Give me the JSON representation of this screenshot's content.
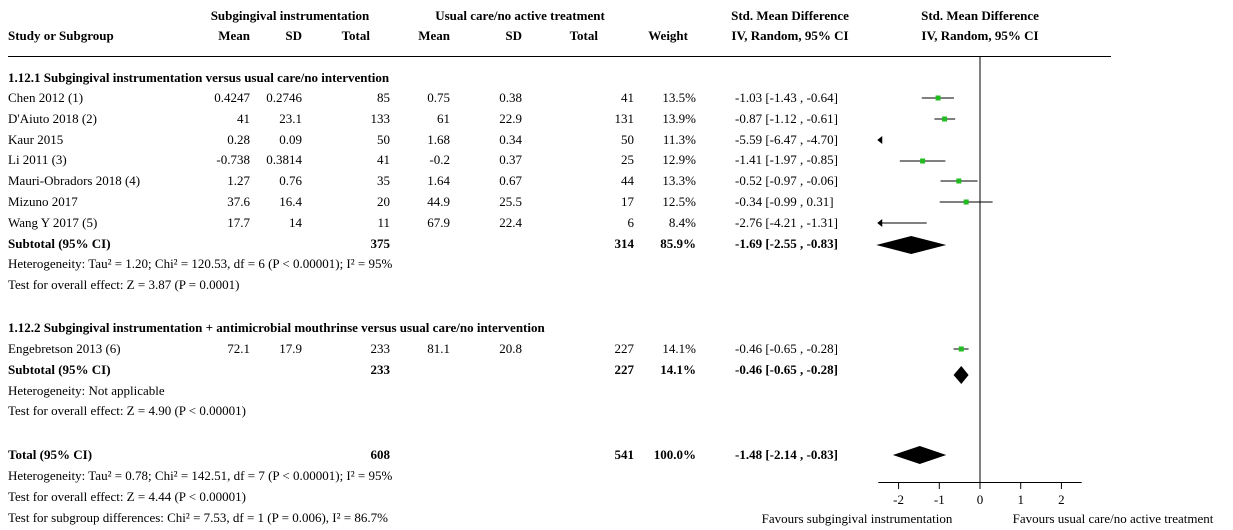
{
  "headers": {
    "group1": "Subgingival instrumentation",
    "group2": "Usual care/no active treatment",
    "smd_top": "Std. Mean Difference",
    "smd_bottom": "IV, Random, 95% CI",
    "plot_top": "Std. Mean Difference",
    "plot_bottom": "IV, Random, 95% CI",
    "study": "Study or Subgroup",
    "mean1": "Mean",
    "sd1": "SD",
    "total1": "Total",
    "mean2": "Mean",
    "sd2": "SD",
    "total2": "Total",
    "weight": "Weight"
  },
  "subgroups": [
    {
      "title": "1.12.1 Subgingival instrumentation versus usual care/no intervention",
      "studies": [
        {
          "name": "Chen 2012 (1)",
          "mean1": "0.4247",
          "sd1": "0.2746",
          "total1": "85",
          "mean2": "0.75",
          "sd2": "0.38",
          "total2": "41",
          "weight": "13.5%",
          "ci": "-1.03 [-1.43 , -0.64]"
        },
        {
          "name": "D'Aiuto 2018 (2)",
          "mean1": "41",
          "sd1": "23.1",
          "total1": "133",
          "mean2": "61",
          "sd2": "22.9",
          "total2": "131",
          "weight": "13.9%",
          "ci": "-0.87 [-1.12 , -0.61]"
        },
        {
          "name": "Kaur 2015",
          "mean1": "0.28",
          "sd1": "0.09",
          "total1": "50",
          "mean2": "1.68",
          "sd2": "0.34",
          "total2": "50",
          "weight": "11.3%",
          "ci": "-5.59 [-6.47 , -4.70]"
        },
        {
          "name": "Li 2011 (3)",
          "mean1": "-0.738",
          "sd1": "0.3814",
          "total1": "41",
          "mean2": "-0.2",
          "sd2": "0.37",
          "total2": "25",
          "weight": "12.9%",
          "ci": "-1.41 [-1.97 , -0.85]"
        },
        {
          "name": "Mauri-Obradors 2018 (4)",
          "mean1": "1.27",
          "sd1": "0.76",
          "total1": "35",
          "mean2": "1.64",
          "sd2": "0.67",
          "total2": "44",
          "weight": "13.3%",
          "ci": "-0.52 [-0.97 , -0.06]"
        },
        {
          "name": "Mizuno 2017",
          "mean1": "37.6",
          "sd1": "16.4",
          "total1": "20",
          "mean2": "44.9",
          "sd2": "25.5",
          "total2": "17",
          "weight": "12.5%",
          "ci": "-0.34 [-0.99 , 0.31]"
        },
        {
          "name": "Wang Y 2017 (5)",
          "mean1": "17.7",
          "sd1": "14",
          "total1": "11",
          "mean2": "67.9",
          "sd2": "22.4",
          "total2": "6",
          "weight": "8.4%",
          "ci": "-2.76 [-4.21 , -1.31]"
        }
      ],
      "subtotal": {
        "label": "Subtotal (95% CI)",
        "total1": "375",
        "total2": "314",
        "weight": "85.9%",
        "ci": "-1.69 [-2.55 , -0.83]"
      },
      "heterogeneity": "Heterogeneity: Tau² = 1.20; Chi² = 120.53, df = 6 (P < 0.00001); I² = 95%",
      "overall": "Test for overall effect: Z = 3.87 (P = 0.0001)"
    },
    {
      "title": "1.12.2 Subgingival instrumentation + antimicrobial mouthrinse versus usual care/no intervention",
      "studies": [
        {
          "name": "Engebretson 2013 (6)",
          "mean1": "72.1",
          "sd1": "17.9",
          "total1": "233",
          "mean2": "81.1",
          "sd2": "20.8",
          "total2": "227",
          "weight": "14.1%",
          "ci": "-0.46 [-0.65 , -0.28]"
        }
      ],
      "subtotal": {
        "label": "Subtotal (95% CI)",
        "total1": "233",
        "total2": "227",
        "weight": "14.1%",
        "ci": "-0.46 [-0.65 , -0.28]"
      },
      "heterogeneity": "Heterogeneity: Not applicable",
      "overall": "Test for overall effect: Z = 4.90 (P < 0.00001)"
    }
  ],
  "total": {
    "label": "Total (95% CI)",
    "total1": "608",
    "total2": "541",
    "weight": "100.0%",
    "ci": "-1.48 [-2.14 , -0.83]"
  },
  "footer": {
    "heterogeneity": "Heterogeneity: Tau² = 0.78; Chi² = 142.51, df = 7 (P < 0.00001); I² = 95%",
    "overall": "Test for overall effect: Z = 4.44 (P < 0.00001)",
    "subgroup_diff": "Test for subgroup differences: Chi² = 7.53, df = 1 (P = 0.006), I² = 86.7%"
  },
  "chart_data": {
    "type": "forest",
    "xlim": [
      -2.5,
      2.5
    ],
    "x_ticks": [
      -2,
      -1,
      0,
      1,
      2
    ],
    "x_tick_labels": [
      "-2",
      "-1",
      "0",
      "1",
      "2"
    ],
    "favours_left": "Favours subgingival instrumentation",
    "favours_right": "Favours usual care/no active treatment",
    "colors": {
      "point": "#22bb22",
      "diamond": "#000000",
      "line": "#000000"
    },
    "studies": [
      {
        "est": -1.03,
        "lo": -1.43,
        "hi": -0.64
      },
      {
        "est": -0.87,
        "lo": -1.12,
        "hi": -0.61
      },
      {
        "est": -5.59,
        "lo": -6.47,
        "hi": -4.7
      },
      {
        "est": -1.41,
        "lo": -1.97,
        "hi": -0.85
      },
      {
        "est": -0.52,
        "lo": -0.97,
        "hi": -0.06
      },
      {
        "est": -0.34,
        "lo": -0.99,
        "hi": 0.31
      },
      {
        "est": -2.76,
        "lo": -4.21,
        "hi": -1.31
      },
      {
        "est": -0.46,
        "lo": -0.65,
        "hi": -0.28
      }
    ],
    "diamonds": [
      {
        "est": -1.69,
        "lo": -2.55,
        "hi": -0.83
      },
      {
        "est": -0.46,
        "lo": -0.65,
        "hi": -0.28
      },
      {
        "est": -1.48,
        "lo": -2.14,
        "hi": -0.83
      }
    ]
  }
}
